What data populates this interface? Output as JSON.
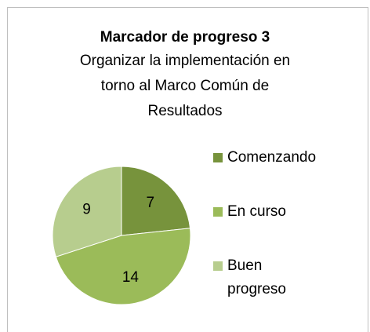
{
  "chart_data": {
    "type": "pie",
    "title": "Marcador de progreso 3",
    "subtitle": "Organizar la implementación en torno al Marco Común de Resultados",
    "categories": [
      "Comenzando",
      "En curso",
      "Buen progreso"
    ],
    "values": [
      7,
      14,
      9
    ],
    "colors": [
      "#77933c",
      "#9bbb59",
      "#b7cd8e"
    ],
    "legend": "right"
  }
}
